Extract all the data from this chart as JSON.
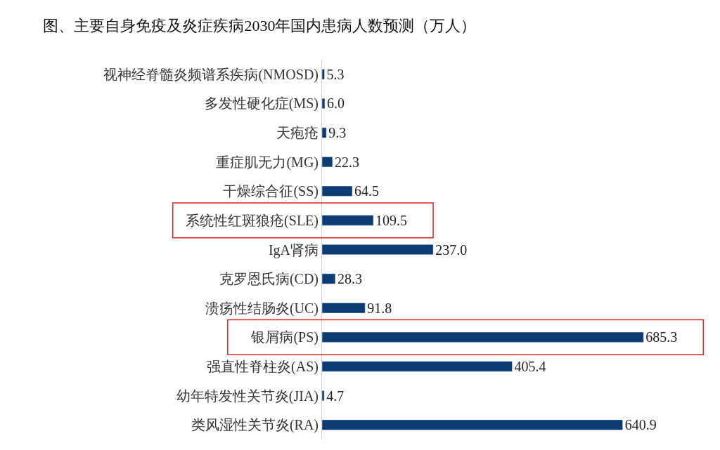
{
  "chart_data": {
    "type": "bar",
    "orientation": "horizontal",
    "title": "图、主要自身免疫及炎症疾病2030年国内患病人数预测（万人）",
    "categories": [
      "视神经脊髓炎频谱系疾病(NMOSD)",
      "多发性硬化症(MS)",
      "天疱疮",
      "重症肌无力(MG)",
      "干燥综合征(SS)",
      "系统性红斑狼疮(SLE)",
      "IgA肾病",
      "克罗恩氏病(CD)",
      "溃疡性结肠炎(UC)",
      "银屑病(PS)",
      "强直性脊柱炎(AS)",
      "幼年特发性关节炎(JIA)",
      "类风湿性关节炎(RA)"
    ],
    "values": [
      5.3,
      6.0,
      9.3,
      22.3,
      64.5,
      109.5,
      237.0,
      28.3,
      91.8,
      685.3,
      405.4,
      4.7,
      640.9
    ],
    "value_labels": [
      "5.3",
      "6.0",
      "9.3",
      "22.3",
      "64.5",
      "109.5",
      "237.0",
      "28.3",
      "91.8",
      "685.3",
      "405.4",
      "4.7",
      "640.9"
    ],
    "color": "#0d3b73"
  }
}
